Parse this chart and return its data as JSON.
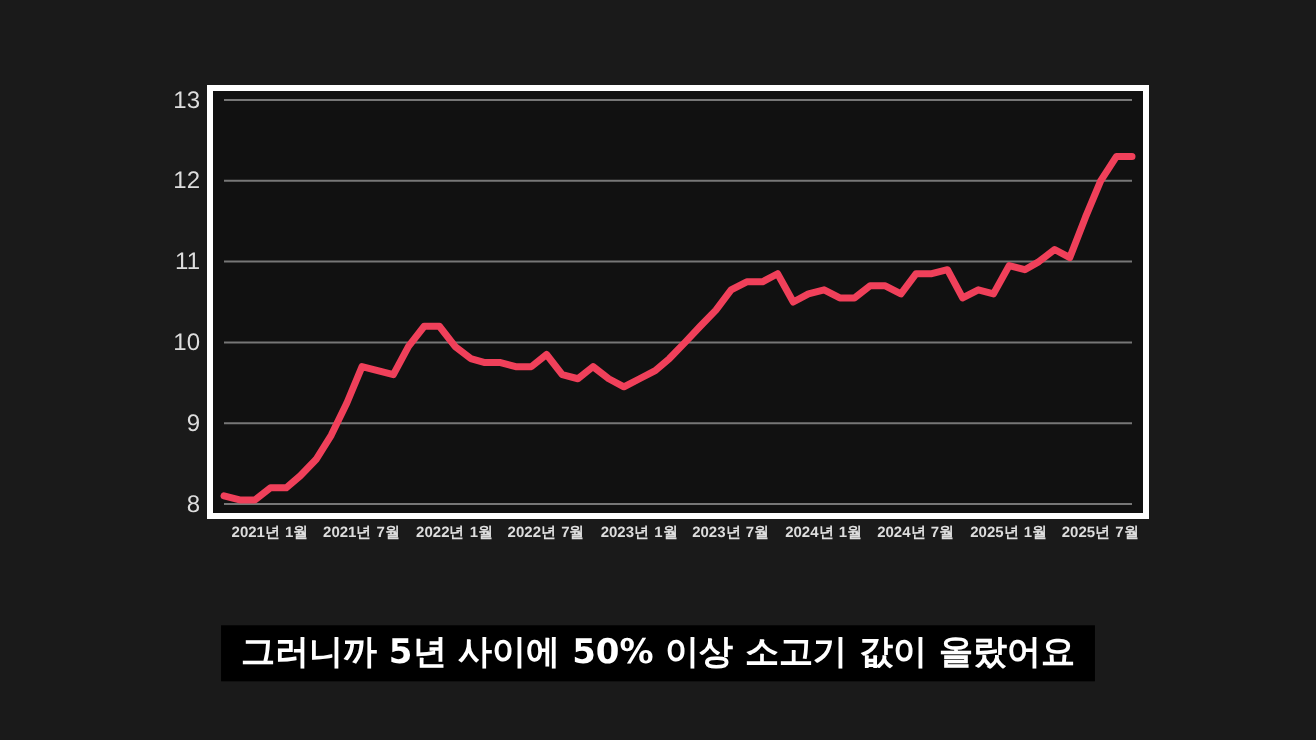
{
  "chart_data": {
    "type": "line",
    "x": [
      "2020-10",
      "2020-11",
      "2020-12",
      "2021-01",
      "2021-02",
      "2021-03",
      "2021-04",
      "2021-05",
      "2021-06",
      "2021-07",
      "2021-08",
      "2021-09",
      "2021-10",
      "2021-11",
      "2021-12",
      "2022-01",
      "2022-02",
      "2022-03",
      "2022-04",
      "2022-05",
      "2022-06",
      "2022-07",
      "2022-08",
      "2022-09",
      "2022-10",
      "2022-11",
      "2022-12",
      "2023-01",
      "2023-02",
      "2023-03",
      "2023-04",
      "2023-05",
      "2023-06",
      "2023-07",
      "2023-08",
      "2023-09",
      "2023-10",
      "2023-11",
      "2023-12",
      "2024-01",
      "2024-02",
      "2024-03",
      "2024-04",
      "2024-05",
      "2024-06",
      "2024-07",
      "2024-08",
      "2024-09",
      "2024-10",
      "2024-11",
      "2024-12",
      "2025-01",
      "2025-02",
      "2025-03",
      "2025-04",
      "2025-05",
      "2025-06",
      "2025-07",
      "2025-08",
      "2025-09"
    ],
    "series": [
      {
        "color": "#f0405a",
        "values": [
          8.1,
          8.05,
          8.05,
          8.2,
          8.2,
          8.35,
          8.55,
          8.85,
          9.25,
          9.7,
          9.65,
          9.6,
          9.95,
          10.2,
          10.2,
          9.95,
          9.8,
          9.75,
          9.75,
          9.7,
          9.7,
          9.85,
          9.6,
          9.55,
          9.7,
          9.55,
          9.45,
          9.55,
          9.65,
          9.8,
          10.0,
          10.2,
          10.4,
          10.65,
          10.75,
          10.75,
          10.85,
          10.5,
          10.6,
          10.65,
          10.55,
          10.55,
          10.7,
          10.7,
          10.6,
          10.85,
          10.85,
          10.9,
          10.55,
          10.65,
          10.6,
          10.95,
          10.9,
          11.0,
          11.15,
          11.05,
          11.55,
          12.0,
          12.3,
          12.3
        ]
      }
    ],
    "xlim": [
      "2020-10",
      "2025-09"
    ],
    "xticks": [
      {
        "value": "2021-01",
        "label": "2021년 1월"
      },
      {
        "value": "2021-07",
        "label": "2021년 7월"
      },
      {
        "value": "2022-01",
        "label": "2022년 1월"
      },
      {
        "value": "2022-07",
        "label": "2022년 7월"
      },
      {
        "value": "2023-01",
        "label": "2023년 1월"
      },
      {
        "value": "2023-07",
        "label": "2023년 7월"
      },
      {
        "value": "2024-01",
        "label": "2024년 1월"
      },
      {
        "value": "2024-07",
        "label": "2024년 7월"
      },
      {
        "value": "2025-01",
        "label": "2025년 1월"
      },
      {
        "value": "2025-07",
        "label": "2025년 7월"
      }
    ],
    "ylim": [
      8,
      13
    ],
    "yticks": [
      8,
      9,
      10,
      11,
      12,
      13
    ],
    "grid": "y",
    "marker": "none",
    "line_style": "solid",
    "annotations": [
      "그러니까 5년 사이에 50% 이상 소고기 값이 올랐어요"
    ]
  }
}
